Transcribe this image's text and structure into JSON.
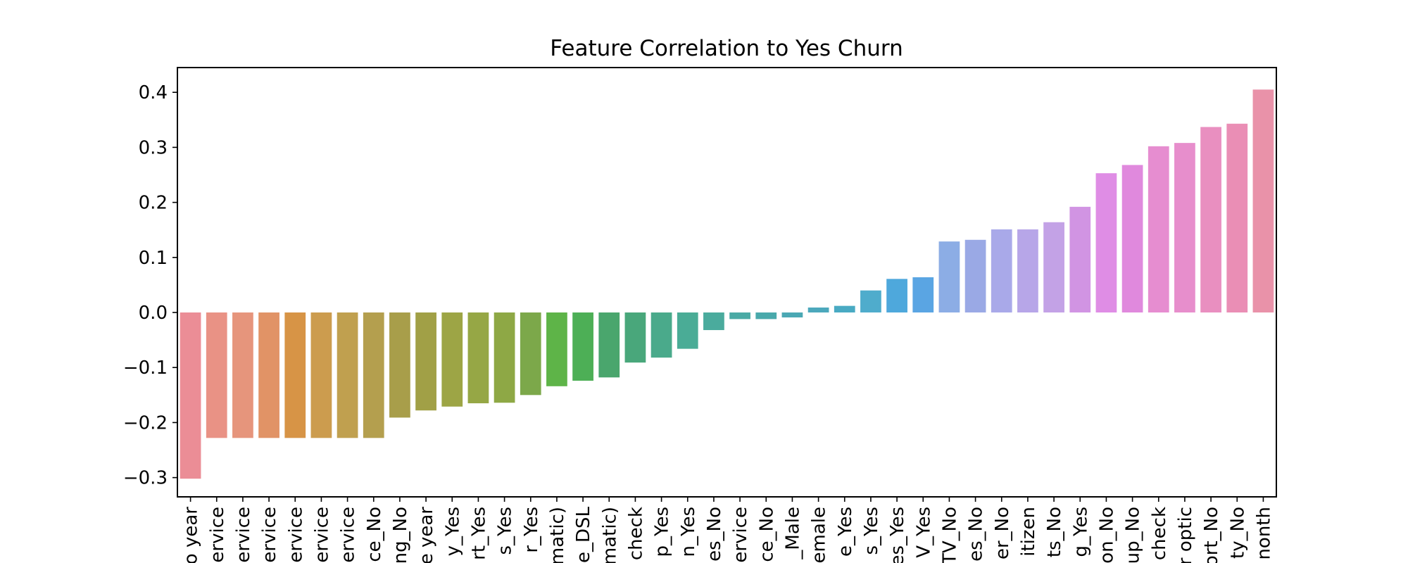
{
  "chart_data": {
    "type": "bar",
    "title": "Feature Correlation to Yes Churn",
    "xlabel": "",
    "ylabel": "",
    "ylim": [
      -0.335,
      0.445
    ],
    "yticks": [
      -0.3,
      -0.2,
      -0.1,
      0.0,
      0.1,
      0.2,
      0.3,
      0.4
    ],
    "ytick_labels": [
      "−0.3",
      "−0.2",
      "−0.1",
      "0.0",
      "0.1",
      "0.2",
      "0.3",
      "0.4"
    ],
    "grid": false,
    "categories": [
      "o year",
      "ervice",
      "ervice",
      "ervice",
      "ervice",
      "ervice",
      "ervice",
      "ce_No",
      "ng_No",
      "e year",
      "y_Yes",
      "rt_Yes",
      "s_Yes",
      "r_Yes",
      "matic)",
      "e_DSL",
      "matic)",
      "check",
      "p_Yes",
      "n_Yes",
      "es_No",
      "ervice",
      "ce_No",
      "_Male",
      "emale",
      "e_Yes",
      "s_Yes",
      "es_Yes",
      "V_Yes",
      "TV_No",
      "es_No",
      "er_No",
      "itizen",
      "ts_No",
      "g_Yes",
      "on_No",
      "up_No",
      "check",
      "r optic",
      "ort_No",
      "ty_No",
      "nonth"
    ],
    "values": [
      -0.302,
      -0.228,
      -0.228,
      -0.228,
      -0.228,
      -0.228,
      -0.228,
      -0.228,
      -0.191,
      -0.178,
      -0.171,
      -0.165,
      -0.164,
      -0.15,
      -0.134,
      -0.124,
      -0.118,
      -0.091,
      -0.082,
      -0.066,
      -0.032,
      -0.012,
      -0.012,
      -0.009,
      0.009,
      0.012,
      0.04,
      0.061,
      0.064,
      0.129,
      0.132,
      0.151,
      0.151,
      0.164,
      0.192,
      0.253,
      0.268,
      0.302,
      0.308,
      0.337,
      0.343,
      0.405
    ],
    "colors": [
      "#eb8d96",
      "#e99285",
      "#e6957c",
      "#e19366",
      "#d79446",
      "#cc9c4e",
      "#c0a04f",
      "#b49f4e",
      "#a89e4a",
      "#a1a046",
      "#9da545",
      "#96a745",
      "#8ea845",
      "#7ca84a",
      "#5eb448",
      "#4daf56",
      "#4aa66d",
      "#49a77b",
      "#4aaa8b",
      "#4aac96",
      "#4aab9d",
      "#4aaaa5",
      "#49a9ab",
      "#4ba8b4",
      "#4ca8bc",
      "#49aac3",
      "#4faccc",
      "#4ea8dc",
      "#5aa5e3",
      "#8cade5",
      "#9aa9e5",
      "#a9a9e9",
      "#b7a6e8",
      "#c3a2e6",
      "#d194e3",
      "#df8de5",
      "#e089dd",
      "#e68dd0",
      "#e78ecc",
      "#e98fc0",
      "#ea8eb5",
      "#e992a9"
    ]
  }
}
